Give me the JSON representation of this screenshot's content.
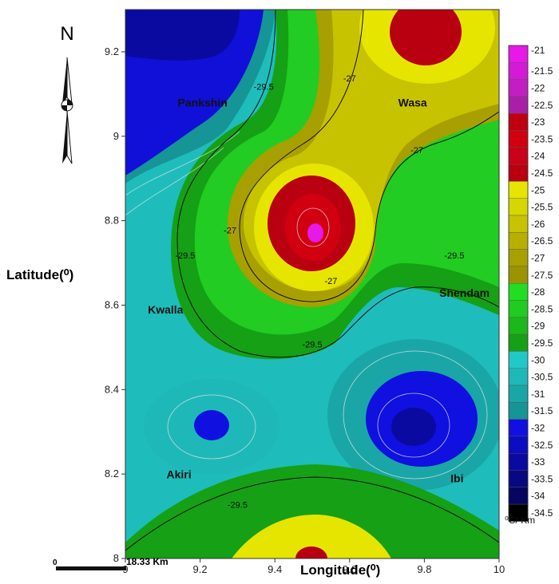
{
  "map": {
    "x_axis_label": "Longitude(⁰)",
    "y_axis_label": "Latitude(⁰)",
    "north_label": "N",
    "scale_bar": {
      "start": "0",
      "end": "18.33 Km"
    },
    "x_ticks": [
      "9",
      "9.2",
      "9.4",
      "9.6",
      "9.8",
      "10"
    ],
    "y_ticks": [
      "9.2",
      "9",
      "8.8",
      "8.6",
      "8.4",
      "8.2",
      "8"
    ],
    "places": [
      {
        "name": "Pankshin",
        "lon": 9.14,
        "lat": 9.07
      },
      {
        "name": "Wasa",
        "lon": 9.73,
        "lat": 9.07
      },
      {
        "name": "Kwalla",
        "lon": 9.06,
        "lat": 8.58
      },
      {
        "name": "Shendam",
        "lon": 9.84,
        "lat": 8.62
      },
      {
        "name": "Akiri",
        "lon": 9.11,
        "lat": 8.19
      },
      {
        "name": "Ibi",
        "lon": 9.87,
        "lat": 8.18
      }
    ],
    "contour_labels": [
      {
        "text": "-29.5",
        "lon": 9.37,
        "lat": 9.11
      },
      {
        "text": "-27",
        "lon": 9.6,
        "lat": 9.13
      },
      {
        "text": "-27",
        "lon": 9.78,
        "lat": 8.96
      },
      {
        "text": "-27",
        "lon": 9.28,
        "lat": 8.77
      },
      {
        "text": "-29.5",
        "lon": 9.16,
        "lat": 8.71
      },
      {
        "text": "-29.5",
        "lon": 9.88,
        "lat": 8.71
      },
      {
        "text": "-27",
        "lon": 9.55,
        "lat": 8.65
      },
      {
        "text": "-29.5",
        "lon": 9.5,
        "lat": 8.5
      },
      {
        "text": "-29.5",
        "lon": 9.3,
        "lat": 8.12
      }
    ]
  },
  "legend": {
    "unit": "⁰C/ Km",
    "values": [
      "-21",
      "-21.5",
      "-22",
      "-22.5",
      "-23",
      "-23.5",
      "-24",
      "-24.5",
      "-25",
      "-25.5",
      "-26",
      "-26.5",
      "-27",
      "-27.5",
      "-28",
      "-28.5",
      "-29",
      "-29.5",
      "-30",
      "-30.5",
      "-31",
      "-31.5",
      "-32",
      "-32.5",
      "-33",
      "-33.5",
      "-34",
      "-34.5"
    ],
    "colors": [
      "#e619e6",
      "#d51ad5",
      "#c21fc2",
      "#a820a8",
      "#c00010",
      "#d00010",
      "#c80018",
      "#b80010",
      "#e5e500",
      "#d6d600",
      "#c8c300",
      "#b8b000",
      "#a8a000",
      "#9a9400",
      "#22dd22",
      "#1fcc1f",
      "#1ab81a",
      "#15a015",
      "#22c8c8",
      "#1fb8b8",
      "#1aa6a6",
      "#159595",
      "#1010e0",
      "#0c0cc0",
      "#0a0aa0",
      "#080880",
      "#060660",
      "#000000"
    ]
  }
}
